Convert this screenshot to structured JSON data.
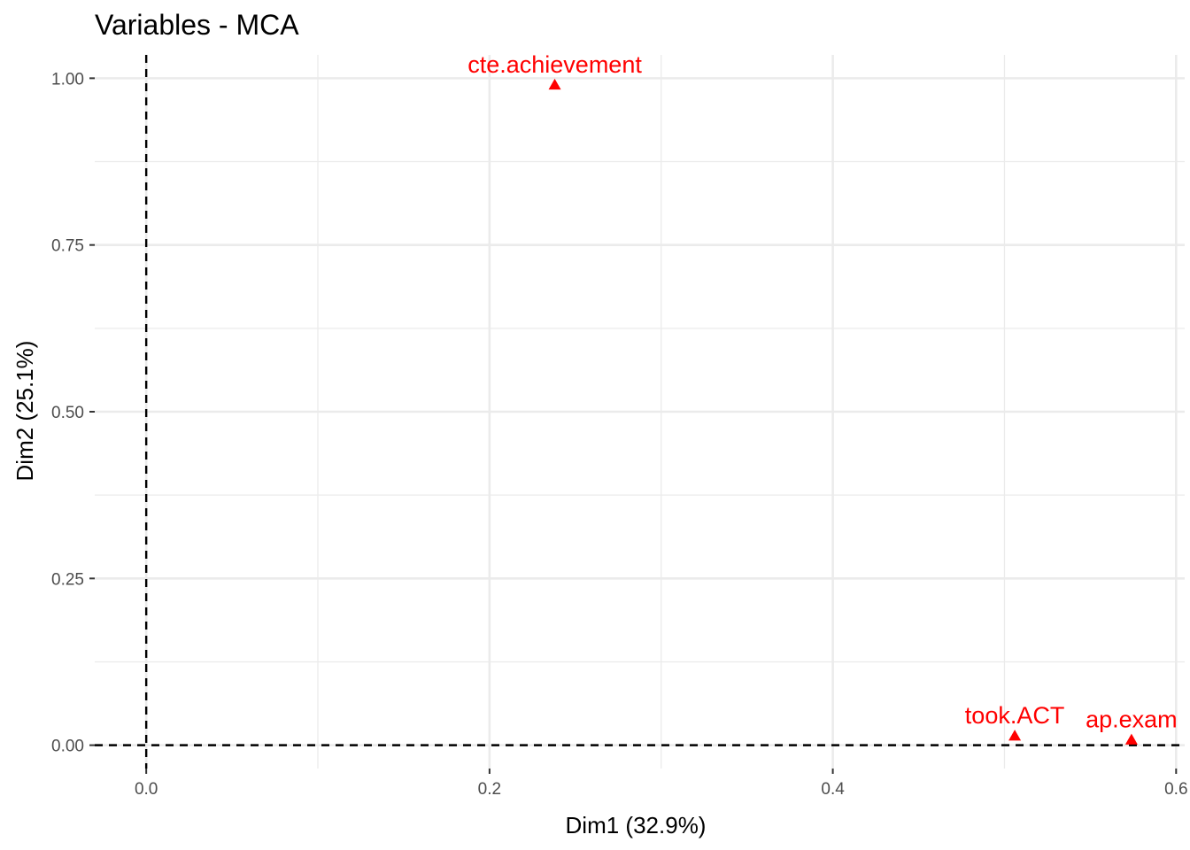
{
  "chart_data": {
    "type": "scatter",
    "title": "Variables - MCA",
    "xlabel": "Dim1 (32.9%)",
    "ylabel": "Dim2 (25.1%)",
    "xlim": [
      -0.03,
      0.605
    ],
    "ylim": [
      -0.035,
      1.035
    ],
    "x_ticks": [
      0.0,
      0.2,
      0.4,
      0.6
    ],
    "x_tick_labels": [
      "0.0",
      "0.2",
      "0.4",
      "0.6"
    ],
    "x_minor_ticks": [
      0.1,
      0.3,
      0.5
    ],
    "y_ticks": [
      0.0,
      0.25,
      0.5,
      0.75,
      1.0
    ],
    "y_tick_labels": [
      "0.00",
      "0.25",
      "0.50",
      "0.75",
      "1.00"
    ],
    "y_minor_ticks": [
      0.125,
      0.375,
      0.625,
      0.875
    ],
    "grid": true,
    "reference_lines": {
      "x": 0,
      "y": 0,
      "style": "dashed"
    },
    "marker": "triangle",
    "color": "#ff0000",
    "points": [
      {
        "label": "cte.achievement",
        "x": 0.238,
        "y": 0.99
      },
      {
        "label": "took.ACT",
        "x": 0.506,
        "y": 0.014
      },
      {
        "label": "ap.exam",
        "x": 0.574,
        "y": 0.008
      }
    ]
  }
}
